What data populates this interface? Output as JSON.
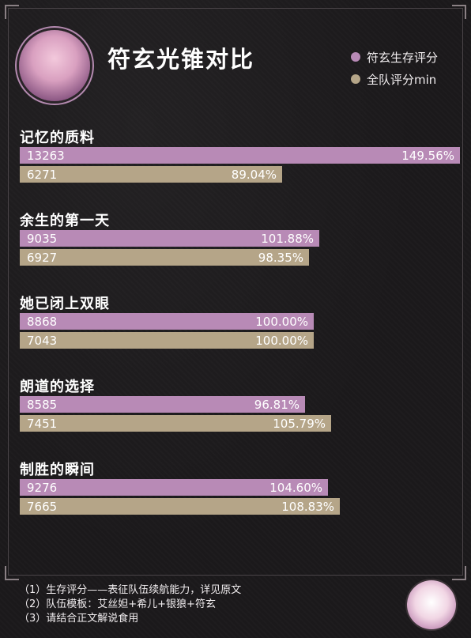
{
  "header": {
    "title": "符玄光锥对比"
  },
  "legend": [
    {
      "label": "符玄生存评分",
      "color": "#b88ab6"
    },
    {
      "label": "全队评分min",
      "color": "#b5a588"
    }
  ],
  "chart_data": {
    "type": "bar",
    "orientation": "horizontal",
    "title": "符玄光锥对比",
    "categories": [
      "记忆的质料",
      "余生的第一天",
      "她已闭上双眼",
      "朗道的选择",
      "制胜的瞬间"
    ],
    "series": [
      {
        "name": "符玄生存评分",
        "color": "#b88ab6",
        "values": [
          13263,
          9035,
          8868,
          8585,
          9276
        ],
        "value_labels": [
          "13263",
          "9035",
          "8868",
          "8585",
          "9276"
        ],
        "percent_labels": [
          "149.56%",
          "101.88%",
          "100.00%",
          "96.81%",
          "104.60%"
        ],
        "percents": [
          149.56,
          101.88,
          100.0,
          96.81,
          104.6
        ]
      },
      {
        "name": "全队评分min",
        "color": "#b5a588",
        "values": [
          6271,
          6927,
          7043,
          7451,
          7665
        ],
        "value_labels": [
          "6271",
          "6927",
          "7043",
          "7451",
          "7665"
        ],
        "percent_labels": [
          "89.04%",
          "98.35%",
          "100.00%",
          "105.79%",
          "108.83%"
        ],
        "percents": [
          89.04,
          98.35,
          100.0,
          105.79,
          108.83
        ]
      }
    ],
    "xlim": [
      0,
      149.56
    ]
  },
  "footer": {
    "notes": [
      "（1）生存评分——表征队伍续航能力，详见原文",
      "（2）队伍模板：艾丝妲+希儿+银狼+符玄",
      "（3）请结合正文解说食用"
    ]
  }
}
